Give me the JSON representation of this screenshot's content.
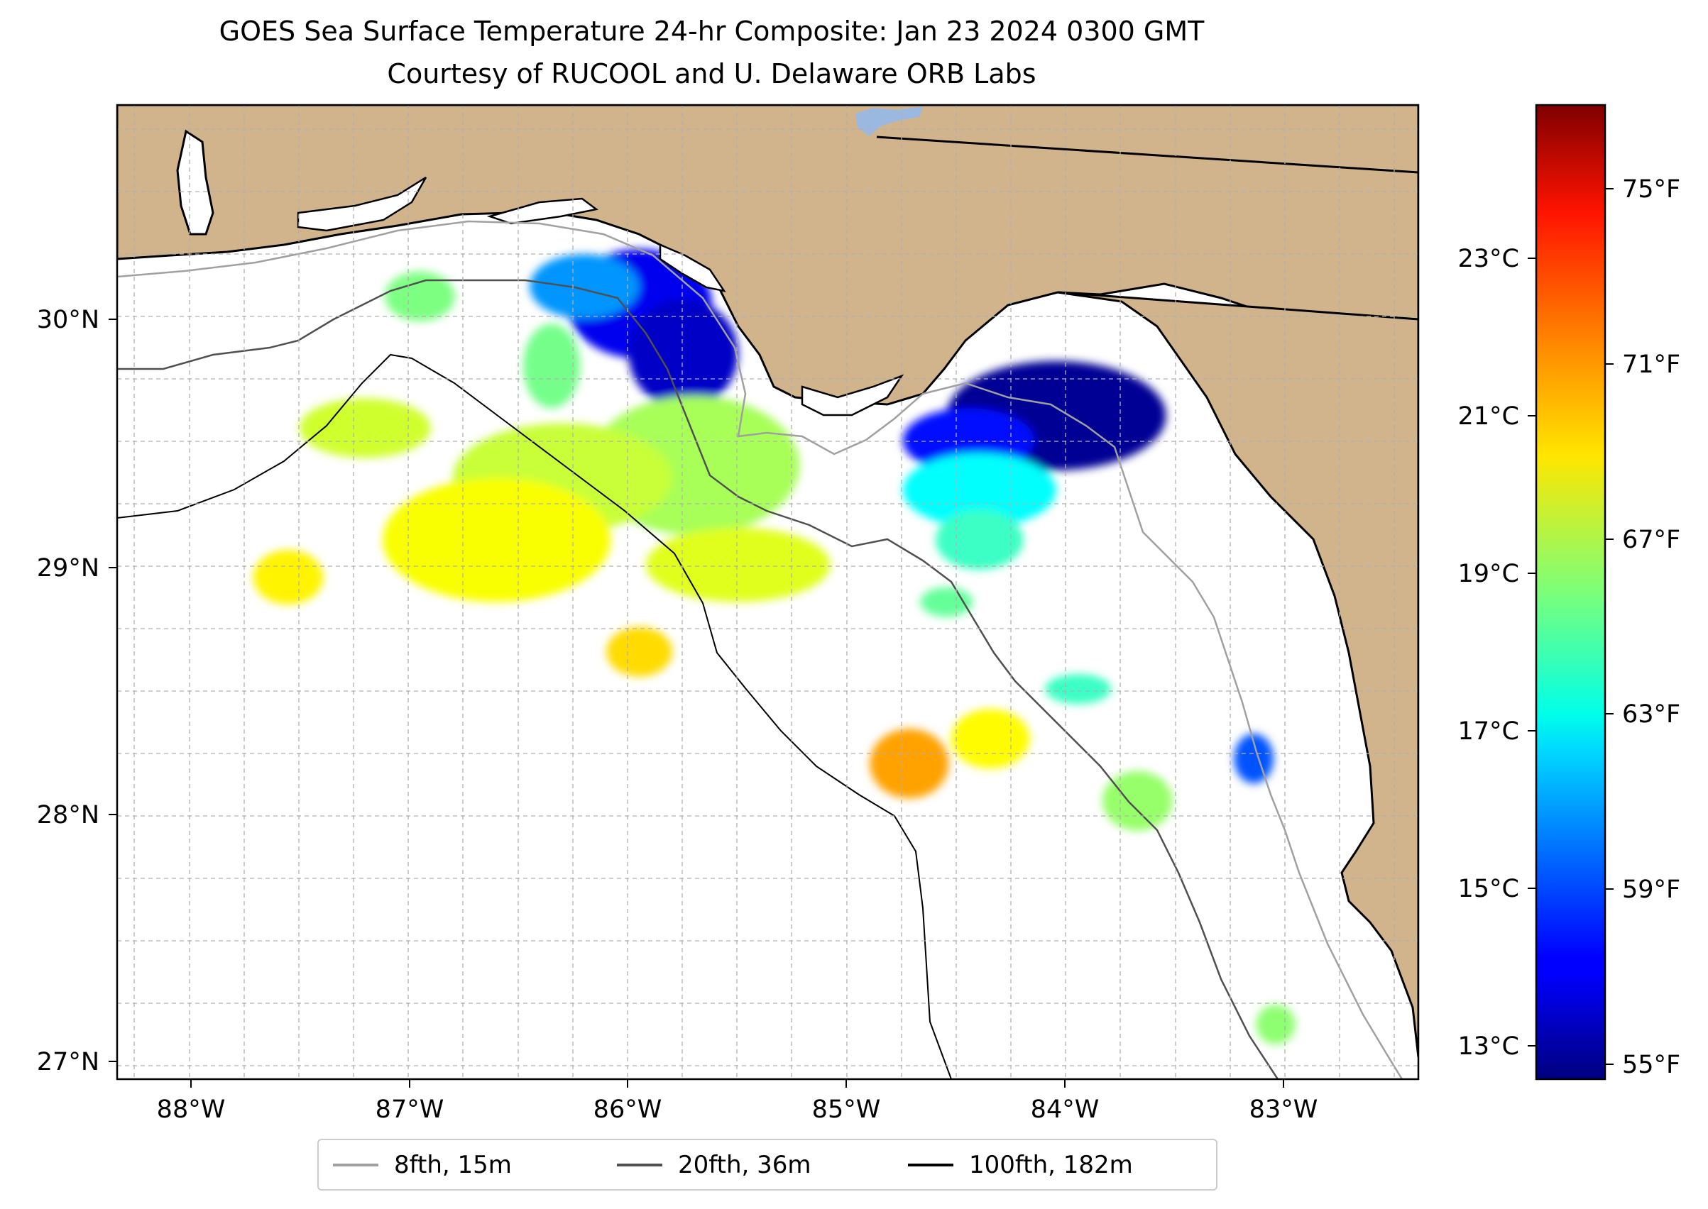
{
  "title": {
    "line1": "GOES Sea Surface Temperature 24-hr Composite: Jan 23 2024 0300 GMT",
    "line2": "Courtesy of RUCOOL and U. Delaware ORB Labs"
  },
  "map": {
    "region": "Northeastern Gulf of Mexico (Florida Big Bend and Panhandle)",
    "extent": {
      "lon_min": -88.33,
      "lon_max": -82.4,
      "lat_min": 26.93,
      "lat_max": 30.85
    },
    "colors": {
      "land": "#d2b48c",
      "ocean": "#ffffff",
      "coastline": "#000000",
      "gridline": "#b0b0b0",
      "lake": "#9bb8e0"
    },
    "lon_ticks": [
      {
        "value": -88,
        "label": "88°W"
      },
      {
        "value": -87,
        "label": "87°W"
      },
      {
        "value": -86,
        "label": "86°W"
      },
      {
        "value": -85,
        "label": "85°W"
      },
      {
        "value": -84,
        "label": "84°W"
      },
      {
        "value": -83,
        "label": "83°W"
      }
    ],
    "lat_ticks": [
      {
        "value": 27,
        "label": "27°N"
      },
      {
        "value": 28,
        "label": "28°N"
      },
      {
        "value": 29,
        "label": "29°N"
      },
      {
        "value": 30,
        "label": "30°N"
      }
    ]
  },
  "legend": {
    "items": [
      {
        "label": "8fth, 15m",
        "color": "#a0a0a0"
      },
      {
        "label": "20fth, 36m",
        "color": "#505050"
      },
      {
        "label": "100fth, 182m",
        "color": "#000000"
      }
    ]
  },
  "colorbar": {
    "colormap": "jet",
    "range_c": [
      12.65,
      25.0
    ],
    "celsius_ticks": [
      {
        "value": 13,
        "label": "13°C"
      },
      {
        "value": 15,
        "label": "15°C"
      },
      {
        "value": 17,
        "label": "17°C"
      },
      {
        "value": 19,
        "label": "19°C"
      },
      {
        "value": 21,
        "label": "21°C"
      },
      {
        "value": 23,
        "label": "23°C"
      }
    ],
    "fahrenheit_ticks": [
      {
        "value": 55,
        "label": "55°F"
      },
      {
        "value": 59,
        "label": "59°F"
      },
      {
        "value": 63,
        "label": "63°F"
      },
      {
        "value": 67,
        "label": "67°F"
      },
      {
        "value": 71,
        "label": "71°F"
      },
      {
        "value": 75,
        "label": "75°F"
      }
    ]
  },
  "chart_data": {
    "type": "heatmap",
    "title": "GOES Sea Surface Temperature 24-hr Composite: Jan 23 2024 0300 GMT",
    "subtitle": "Courtesy of RUCOOL and U. Delaware ORB Labs",
    "units": "°C",
    "xlim": [
      -88.33,
      -82.4
    ],
    "ylim": [
      26.93,
      30.85
    ],
    "sst_patches": [
      {
        "lon": -85.95,
        "lat": 30.05,
        "rlon": 0.33,
        "rlat": 0.22,
        "value": 14.0
      },
      {
        "lon": -85.75,
        "lat": 29.85,
        "rlon": 0.25,
        "rlat": 0.22,
        "value": 13.5
      },
      {
        "lon": -86.2,
        "lat": 30.12,
        "rlon": 0.25,
        "rlat": 0.13,
        "value": 16.0
      },
      {
        "lon": -84.05,
        "lat": 29.6,
        "rlon": 0.5,
        "rlat": 0.22,
        "value": 12.9
      },
      {
        "lon": -84.45,
        "lat": 29.5,
        "rlon": 0.3,
        "rlat": 0.13,
        "value": 14.3
      },
      {
        "lon": -84.4,
        "lat": 29.3,
        "rlon": 0.35,
        "rlat": 0.15,
        "value": 17.3
      },
      {
        "lon": -84.4,
        "lat": 29.1,
        "rlon": 0.2,
        "rlat": 0.12,
        "value": 18.0
      },
      {
        "lon": -84.55,
        "lat": 28.85,
        "rlon": 0.12,
        "rlat": 0.06,
        "value": 18.5
      },
      {
        "lon": -86.95,
        "lat": 30.08,
        "rlon": 0.16,
        "rlat": 0.1,
        "value": 18.8
      },
      {
        "lon": -86.35,
        "lat": 29.8,
        "rlon": 0.13,
        "rlat": 0.17,
        "value": 18.7
      },
      {
        "lon": -85.7,
        "lat": 29.4,
        "rlon": 0.48,
        "rlat": 0.28,
        "value": 19.3
      },
      {
        "lon": -86.3,
        "lat": 29.35,
        "rlon": 0.5,
        "rlat": 0.22,
        "value": 19.7
      },
      {
        "lon": -87.2,
        "lat": 29.55,
        "rlon": 0.3,
        "rlat": 0.12,
        "value": 19.8
      },
      {
        "lon": -86.6,
        "lat": 29.1,
        "rlon": 0.52,
        "rlat": 0.25,
        "value": 20.3
      },
      {
        "lon": -85.5,
        "lat": 29.0,
        "rlon": 0.42,
        "rlat": 0.15,
        "value": 20.0
      },
      {
        "lon": -87.55,
        "lat": 28.95,
        "rlon": 0.16,
        "rlat": 0.11,
        "value": 20.5
      },
      {
        "lon": -85.95,
        "lat": 28.65,
        "rlon": 0.15,
        "rlat": 0.1,
        "value": 20.8
      },
      {
        "lon": -84.72,
        "lat": 28.2,
        "rlon": 0.18,
        "rlat": 0.14,
        "value": 21.5
      },
      {
        "lon": -84.35,
        "lat": 28.3,
        "rlon": 0.18,
        "rlat": 0.12,
        "value": 20.4
      },
      {
        "lon": -83.95,
        "lat": 28.5,
        "rlon": 0.15,
        "rlat": 0.06,
        "value": 18.0
      },
      {
        "lon": -83.68,
        "lat": 28.05,
        "rlon": 0.16,
        "rlat": 0.12,
        "value": 19.1
      },
      {
        "lon": -83.15,
        "lat": 28.22,
        "rlon": 0.09,
        "rlat": 0.1,
        "value": 15.2
      },
      {
        "lon": -83.05,
        "lat": 27.15,
        "rlon": 0.09,
        "rlat": 0.08,
        "value": 19.0
      }
    ]
  }
}
